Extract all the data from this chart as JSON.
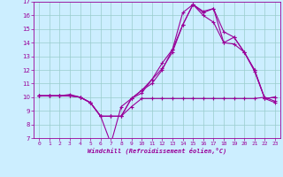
{
  "xlabel": "Windchill (Refroidissement éolien,°C)",
  "xlim": [
    -0.5,
    23.5
  ],
  "ylim": [
    7,
    17
  ],
  "xticks": [
    0,
    1,
    2,
    3,
    4,
    5,
    6,
    7,
    8,
    9,
    10,
    11,
    12,
    13,
    14,
    15,
    16,
    17,
    18,
    19,
    20,
    21,
    22,
    23
  ],
  "yticks": [
    7,
    8,
    9,
    10,
    11,
    12,
    13,
    14,
    15,
    16,
    17
  ],
  "bg_color": "#cceeff",
  "line_color": "#990099",
  "grid_color": "#99cccc",
  "lines": [
    [
      10.1,
      10.1,
      10.1,
      10.1,
      10.0,
      9.6,
      8.6,
      8.6,
      8.6,
      9.3,
      9.9,
      9.9,
      9.9,
      9.9,
      9.9,
      9.9,
      9.9,
      9.9,
      9.9,
      9.9,
      9.9,
      9.9,
      10.0,
      9.7
    ],
    [
      10.1,
      10.1,
      10.1,
      10.1,
      10.0,
      9.6,
      8.6,
      6.6,
      9.3,
      9.9,
      10.5,
      11.0,
      12.0,
      13.5,
      15.3,
      16.8,
      16.0,
      15.5,
      14.0,
      13.9,
      13.3,
      11.9,
      9.9,
      9.6
    ],
    [
      10.1,
      10.1,
      10.1,
      10.1,
      10.0,
      9.6,
      8.6,
      8.6,
      8.6,
      9.9,
      10.3,
      11.3,
      12.1,
      13.3,
      15.3,
      16.8,
      16.3,
      16.5,
      14.0,
      14.4,
      13.3,
      12.0,
      9.9,
      10.0
    ],
    [
      10.1,
      10.1,
      10.1,
      10.2,
      10.0,
      9.6,
      8.6,
      8.6,
      8.6,
      9.9,
      10.5,
      11.3,
      12.5,
      13.5,
      16.2,
      16.8,
      16.2,
      16.5,
      14.8,
      14.4,
      13.3,
      12.0,
      9.9,
      10.0
    ]
  ]
}
